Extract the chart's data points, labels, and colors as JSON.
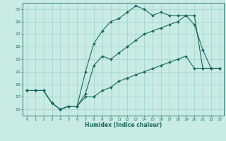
{
  "xlabel": "Humidex (Indice chaleur)",
  "bg_color": "#c8ebe4",
  "grid_color": "#a8d5cc",
  "line_color": "#1a6b60",
  "xlim": [
    -0.5,
    23.5
  ],
  "ylim": [
    14.0,
    32.0
  ],
  "xticks": [
    0,
    1,
    2,
    3,
    4,
    5,
    6,
    7,
    8,
    9,
    10,
    11,
    12,
    13,
    14,
    15,
    16,
    17,
    18,
    19,
    20,
    21,
    22,
    23
  ],
  "yticks": [
    15,
    17,
    19,
    21,
    23,
    25,
    27,
    29,
    31
  ],
  "line1_x": [
    0,
    1,
    2,
    3,
    4,
    5,
    6,
    7,
    8,
    9,
    10,
    11,
    12,
    13,
    14,
    15,
    16,
    17,
    18,
    19,
    20,
    21,
    22,
    23
  ],
  "line1_y": [
    18,
    18,
    18,
    16,
    15,
    15.5,
    15.5,
    21,
    25.5,
    27.5,
    29,
    29.5,
    30.5,
    31.5,
    31,
    30,
    30.5,
    30,
    30,
    30,
    28.5,
    24.5,
    21.5,
    21.5
  ],
  "line2_x": [
    0,
    1,
    2,
    3,
    4,
    5,
    6,
    7,
    8,
    9,
    10,
    11,
    12,
    13,
    14,
    15,
    16,
    17,
    18,
    19,
    20,
    21,
    22,
    23
  ],
  "line2_y": [
    18,
    18,
    18,
    16,
    15,
    15.5,
    15.5,
    17.5,
    22,
    23.5,
    23,
    24,
    25,
    26,
    27,
    27.5,
    28,
    28.5,
    29,
    30,
    30,
    21.5,
    21.5,
    21.5
  ],
  "line3_x": [
    0,
    1,
    2,
    3,
    4,
    5,
    6,
    7,
    8,
    9,
    10,
    11,
    12,
    13,
    14,
    15,
    16,
    17,
    18,
    19,
    20,
    21,
    22,
    23
  ],
  "line3_y": [
    18,
    18,
    18,
    16,
    15,
    15.5,
    15.5,
    17,
    17,
    18,
    18.5,
    19.5,
    20,
    20.5,
    21,
    21.5,
    22,
    22.5,
    23,
    23.5,
    21.5,
    21.5,
    21.5,
    21.5
  ]
}
